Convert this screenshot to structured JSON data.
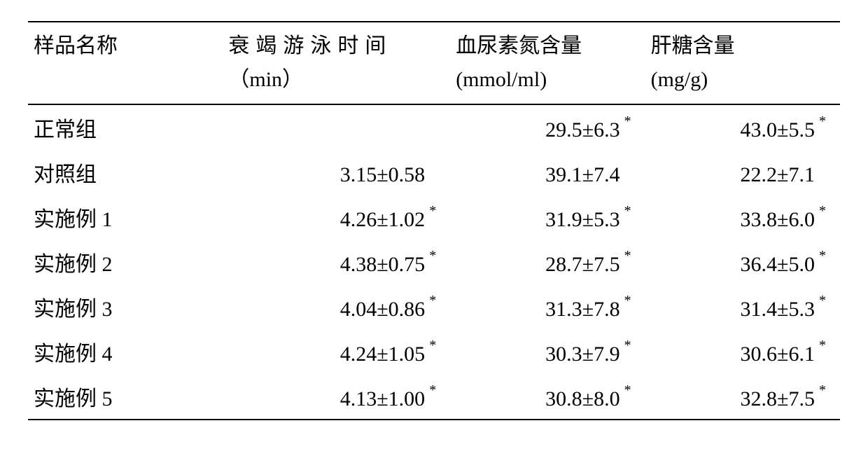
{
  "table": {
    "headers": {
      "name": {
        "label": "样品名称",
        "unit": ""
      },
      "swim": {
        "label": "衰竭游泳时间",
        "unit": "（min）"
      },
      "bun": {
        "label": "血尿素氮含量",
        "unit": "(mmol/ml)"
      },
      "gly": {
        "label": "肝糖含量",
        "unit": "(mg/g)"
      }
    },
    "rows": [
      {
        "name": "正常组",
        "swim": "",
        "swim_star": false,
        "bun": "29.5±6.3",
        "bun_star": true,
        "gly": "43.0±5.5",
        "gly_star": true
      },
      {
        "name": "对照组",
        "swim": "3.15±0.58",
        "swim_star": false,
        "bun": "39.1±7.4",
        "bun_star": false,
        "gly": "22.2±7.1",
        "gly_star": false
      },
      {
        "name": "实施例 1",
        "swim": "4.26±1.02",
        "swim_star": true,
        "bun": "31.9±5.3",
        "bun_star": true,
        "gly": "33.8±6.0",
        "gly_star": true
      },
      {
        "name": "实施例 2",
        "swim": "4.38±0.75",
        "swim_star": true,
        "bun": "28.7±7.5",
        "bun_star": true,
        "gly": "36.4±5.0",
        "gly_star": true
      },
      {
        "name": "实施例 3",
        "swim": "4.04±0.86",
        "swim_star": true,
        "bun": "31.3±7.8",
        "bun_star": true,
        "gly": "31.4±5.3",
        "gly_star": true
      },
      {
        "name": "实施例 4",
        "swim": "4.24±1.05",
        "swim_star": true,
        "bun": "30.3±7.9",
        "bun_star": true,
        "gly": "30.6±6.1",
        "gly_star": true
      },
      {
        "name": "实施例 5",
        "swim": "4.13±1.00",
        "swim_star": true,
        "bun": "30.8±8.0",
        "bun_star": true,
        "gly": "32.8±7.5",
        "gly_star": true
      }
    ],
    "star_glyph": "*",
    "colors": {
      "text": "#000000",
      "background": "#ffffff",
      "rule": "#000000"
    },
    "font_size_pt": 22
  }
}
